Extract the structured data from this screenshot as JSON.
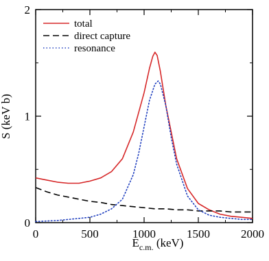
{
  "chart_data": {
    "type": "line",
    "xlabel": "E",
    "xlabel_subscript": "c.m.",
    "xlabel_unit": " (keV)",
    "ylabel": "S (keV b)",
    "xlim": [
      0,
      2000
    ],
    "ylim": [
      0,
      2
    ],
    "x_ticks": [
      0,
      500,
      1000,
      1500,
      2000
    ],
    "y_ticks": [
      0,
      1,
      2
    ],
    "grid": false,
    "legend_position": "top-left",
    "series": [
      {
        "name": "total",
        "color": "#d62728",
        "dash": "solid",
        "x": [
          0,
          100,
          200,
          300,
          400,
          500,
          600,
          700,
          800,
          900,
          1000,
          1050,
          1080,
          1100,
          1120,
          1150,
          1200,
          1300,
          1400,
          1500,
          1600,
          1700,
          1800,
          1900,
          2000
        ],
        "y": [
          0.42,
          0.4,
          0.38,
          0.37,
          0.37,
          0.39,
          0.42,
          0.48,
          0.6,
          0.85,
          1.22,
          1.45,
          1.56,
          1.6,
          1.57,
          1.42,
          1.1,
          0.6,
          0.32,
          0.18,
          0.12,
          0.08,
          0.06,
          0.05,
          0.04
        ]
      },
      {
        "name": "direct capture",
        "color": "#000000",
        "dash": "dashed",
        "x": [
          0,
          100,
          200,
          300,
          400,
          500,
          600,
          700,
          800,
          900,
          1000,
          1100,
          1200,
          1300,
          1400,
          1500,
          1600,
          1700,
          1800,
          1900,
          2000
        ],
        "y": [
          0.33,
          0.29,
          0.26,
          0.24,
          0.22,
          0.2,
          0.19,
          0.17,
          0.16,
          0.15,
          0.14,
          0.13,
          0.13,
          0.12,
          0.12,
          0.11,
          0.11,
          0.11,
          0.1,
          0.1,
          0.1
        ]
      },
      {
        "name": "resonance",
        "color": "#1f3fbf",
        "dash": "dotted",
        "x": [
          0,
          200,
          400,
          500,
          600,
          700,
          800,
          900,
          950,
          1000,
          1050,
          1100,
          1130,
          1150,
          1200,
          1250,
          1300,
          1400,
          1500,
          1600,
          1700,
          1800,
          1900,
          2000
        ],
        "y": [
          0.01,
          0.02,
          0.04,
          0.05,
          0.08,
          0.13,
          0.22,
          0.45,
          0.65,
          0.9,
          1.15,
          1.3,
          1.33,
          1.3,
          1.1,
          0.8,
          0.55,
          0.25,
          0.12,
          0.07,
          0.05,
          0.04,
          0.03,
          0.03
        ]
      }
    ]
  }
}
